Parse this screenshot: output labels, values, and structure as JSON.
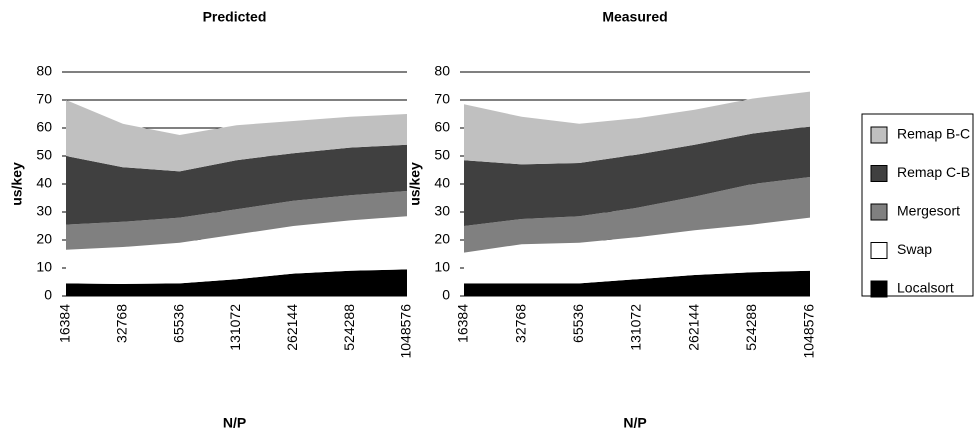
{
  "chart_data": [
    {
      "type": "stacked-area",
      "title": "Predicted",
      "x_label": "N/P",
      "y_label": "us/key",
      "categories": [
        "16384",
        "32768",
        "65536",
        "131072",
        "262144",
        "524288",
        "1048576"
      ],
      "ylim": [
        0,
        80
      ],
      "yticks": [
        0,
        10,
        20,
        30,
        40,
        50,
        60,
        70,
        80
      ],
      "grid": true,
      "legend": "right",
      "series": [
        {
          "name": "Localsort",
          "color": "#000000",
          "values": [
            4.5,
            4.3,
            4.5,
            6,
            8,
            9,
            9.5
          ]
        },
        {
          "name": "Swap",
          "color": "#ffffff",
          "values": [
            12,
            13.2,
            14.5,
            16,
            17,
            18,
            19
          ]
        },
        {
          "name": "Mergesort",
          "color": "#808080",
          "values": [
            9,
            9,
            9,
            9,
            9,
            9,
            9
          ]
        },
        {
          "name": "Remap C-B",
          "color": "#404040",
          "values": [
            24.5,
            19.5,
            16.5,
            17.5,
            17,
            17,
            16.5
          ]
        },
        {
          "name": "Remap B-C",
          "color": "#c0c0c0",
          "values": [
            20,
            15.5,
            13,
            12.5,
            11.5,
            11,
            11
          ]
        }
      ]
    },
    {
      "type": "stacked-area",
      "title": "Measured",
      "x_label": "N/P",
      "y_label": "us/key",
      "categories": [
        "16384",
        "32768",
        "65536",
        "131072",
        "262144",
        "524288",
        "1048576"
      ],
      "ylim": [
        0,
        80
      ],
      "yticks": [
        0,
        10,
        20,
        30,
        40,
        50,
        60,
        70,
        80
      ],
      "grid": true,
      "series": [
        {
          "color": "#000000",
          "values": [
            4.5,
            4.5,
            4.5,
            6,
            7.5,
            8.5,
            9
          ]
        },
        {
          "color": "#ffffff",
          "values": [
            11,
            14,
            14.5,
            15,
            16,
            17,
            19
          ]
        },
        {
          "color": "#808080",
          "values": [
            9.5,
            9,
            9.5,
            10.5,
            12,
            14.5,
            14.5
          ]
        },
        {
          "color": "#404040",
          "values": [
            23.5,
            19.5,
            19,
            19,
            18.5,
            18,
            18
          ]
        },
        {
          "color": "#c0c0c0",
          "values": [
            20,
            17,
            14,
            13,
            12.5,
            12.5,
            12.5
          ]
        }
      ]
    }
  ]
}
